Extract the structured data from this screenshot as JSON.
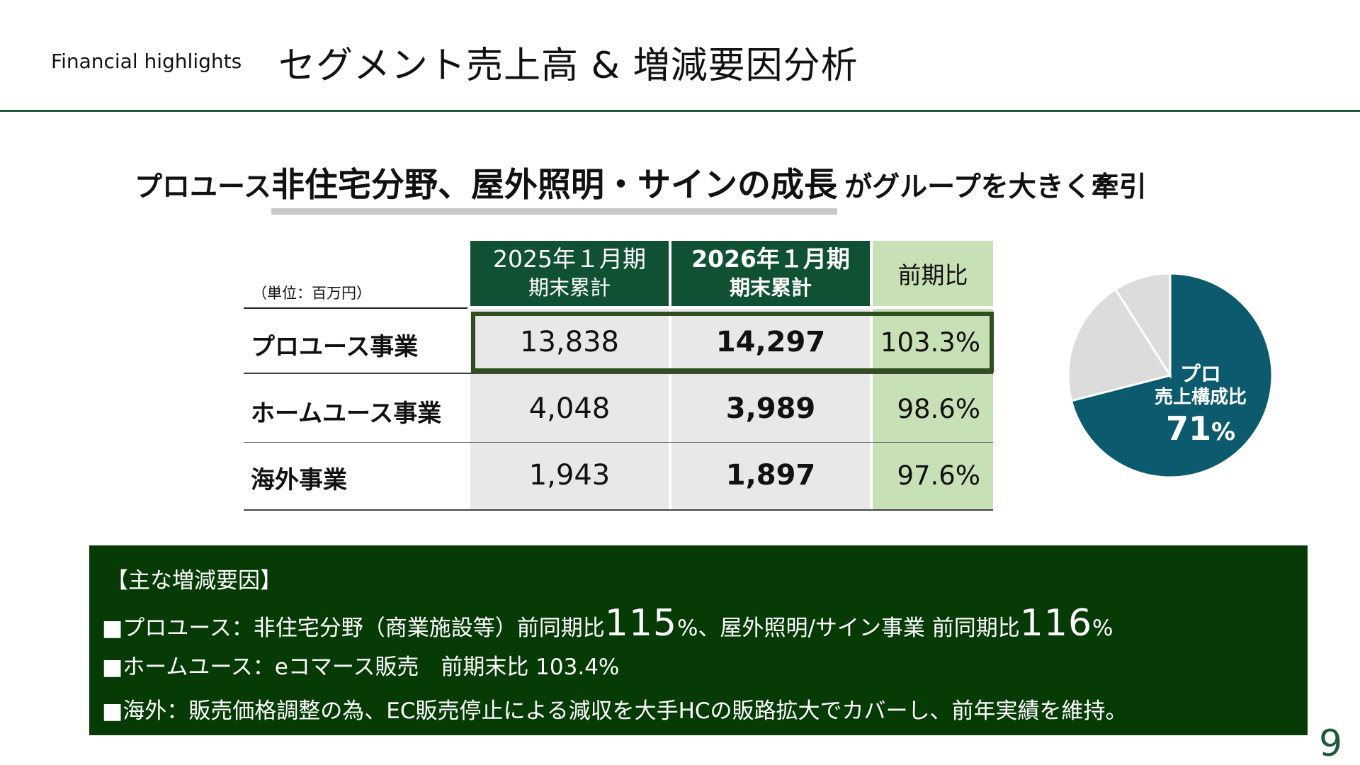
{
  "header": {
    "section_label": "Financial highlights",
    "title": "セグメント売上高 & 増減要因分析",
    "rule_color": "#1e5a3a"
  },
  "headline": {
    "part1": "プロユース",
    "part2": "非住宅分野、屋外照明・サインの成長",
    "part3": "がグループを大きく牽引"
  },
  "table": {
    "unit_note": "（単位：百万円）",
    "headers": {
      "prev_line1": "2025年１月期",
      "prev_line2": "期末累計",
      "cur_line1": "2026年１月期",
      "cur_line2": "期末累計",
      "ratio": "前期比"
    },
    "rows": [
      {
        "label": "プロユース事業",
        "prev": "13,838",
        "cur": "14,297",
        "ratio": "103.3%"
      },
      {
        "label": "ホームユース事業",
        "prev": "4,048",
        "cur": "3,989",
        "ratio": "98.6%"
      },
      {
        "label": "海外事業",
        "prev": "1,943",
        "cur": "1,897",
        "ratio": "97.6%"
      }
    ],
    "colors": {
      "header_dark": "#0f5132",
      "ratio_bg": "#c7e0b5",
      "cell_bg": "#e8e8e8",
      "highlight_border": "#2f4f1f"
    }
  },
  "pie": {
    "label_line1": "プロ",
    "label_line2": "売上構成比",
    "value": "71",
    "unit": "%",
    "slices": [
      {
        "segment": "プロ",
        "share": 71,
        "color": "#0b5a6e"
      },
      {
        "share": 20,
        "color": "#dcdcdc"
      },
      {
        "share": 9,
        "color": "#dcdcdc"
      }
    ]
  },
  "factors": {
    "title": "【主な増減要因】",
    "line1_a": "■プロユース：非住宅分野（商業施設等）前同期比",
    "line1_num1": "115",
    "line1_b": "%、屋外照明/サイン事業 前同期比",
    "line1_num2": "116",
    "line1_c": "%",
    "line2": "■ホームユース：eコマース販売　前期末比 103.4%",
    "line3": "■海外：販売価格調整の為、EC販売停止による減収を大手HCの販路拡大でカバーし、前年実績を維持。",
    "bg_color": "#063b06"
  },
  "page_number": "9"
}
